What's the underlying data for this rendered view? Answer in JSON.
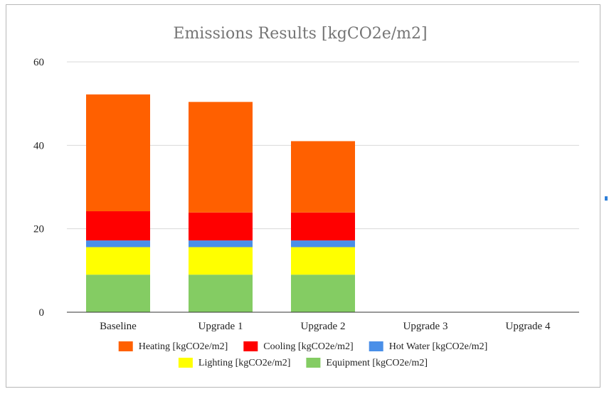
{
  "chart_data": {
    "type": "bar",
    "stacked": true,
    "title": "Emissions Results [kgCO2e/m2]",
    "xlabel": "",
    "ylabel": "",
    "ylim": [
      0,
      60
    ],
    "yticks": [
      "0",
      "20",
      "40",
      "60"
    ],
    "grid": true,
    "legend_position": "bottom",
    "categories": [
      "Baseline",
      "Upgrade 1",
      "Upgrade 2",
      "Upgrade 3",
      "Upgrade 4"
    ],
    "series": [
      {
        "name": "Equipment [kgCO2e/m2]",
        "color": "#84cc63",
        "values": [
          9,
          9,
          9,
          0,
          0
        ]
      },
      {
        "name": "Lighting [kgCO2e/m2]",
        "color": "#ffff00",
        "values": [
          6.6,
          6.6,
          6.6,
          0,
          0
        ]
      },
      {
        "name": "Hot Water [kgCO2e/m2]",
        "color": "#4a8fe8",
        "values": [
          1.6,
          1.6,
          1.6,
          0,
          0
        ]
      },
      {
        "name": "Cooling [kgCO2e/m2]",
        "color": "#ff0000",
        "values": [
          7,
          6.7,
          6.7,
          0,
          0
        ]
      },
      {
        "name": "Heating [kgCO2e/m2]",
        "color": "#ff6000",
        "values": [
          28,
          26.5,
          17.1,
          0,
          0
        ]
      }
    ],
    "legend_order": [
      4,
      3,
      2,
      1,
      0
    ]
  }
}
